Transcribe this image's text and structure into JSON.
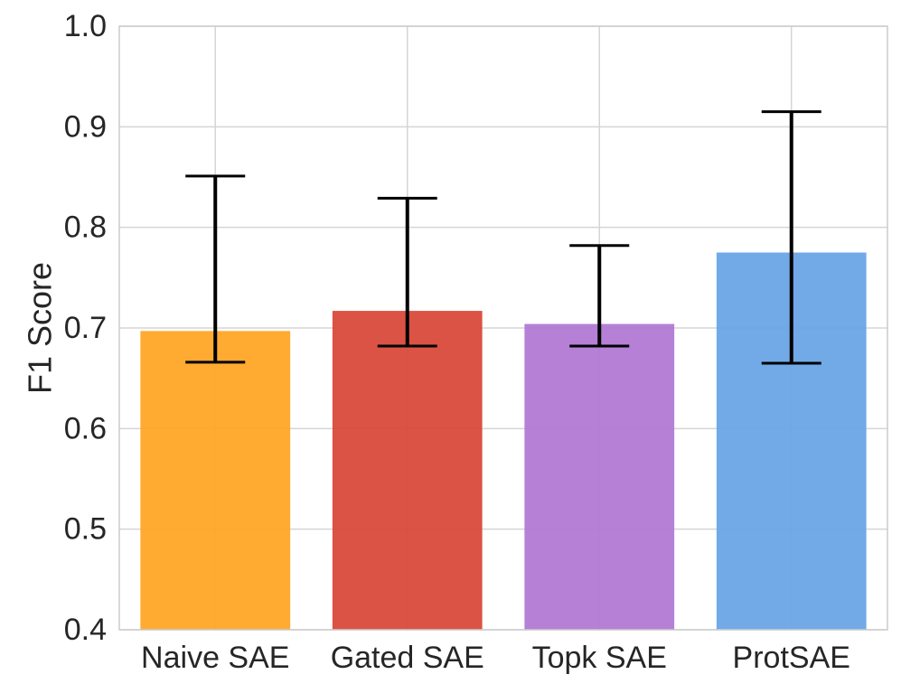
{
  "chart_data": {
    "type": "bar",
    "title": "",
    "xlabel": "",
    "ylabel": "F1 Score",
    "ylim": [
      0.4,
      1.0
    ],
    "yticks": [
      "0.4",
      "0.5",
      "0.6",
      "0.7",
      "0.8",
      "0.9",
      "1.0"
    ],
    "grid": true,
    "categories": [
      "Naive SAE",
      "Gated SAE",
      "Topk SAE",
      "ProtSAE"
    ],
    "values": [
      0.697,
      0.717,
      0.704,
      0.775
    ],
    "error_low": [
      0.666,
      0.682,
      0.682,
      0.665
    ],
    "error_high": [
      0.851,
      0.829,
      0.782,
      0.915
    ],
    "colors": [
      "#FFA726",
      "#D94A3A",
      "#B279D4",
      "#6AA5E6"
    ]
  }
}
